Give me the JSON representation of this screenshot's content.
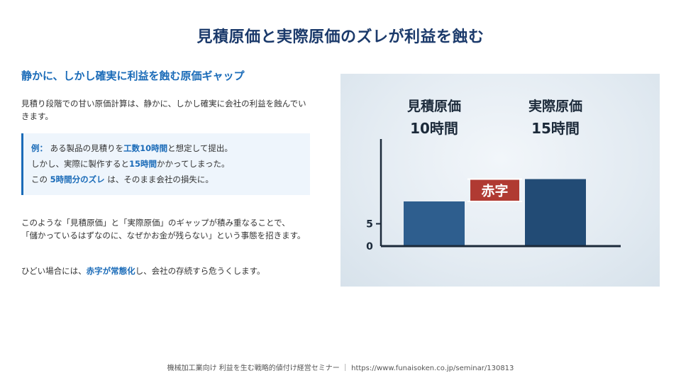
{
  "page": {
    "title": "見積原価と実際原価のズレが利益を蝕む",
    "subtitle": "静かに、しかし確実に利益を蝕む原価ギャップ",
    "intro": "見積り段階での甘い原価計算は、静かに、しかし確実に会社の利益を蝕んでいきます。",
    "example": {
      "line1_label": "例：",
      "line1_a": " ある製品の見積りを",
      "line1_hl": "工数10時間",
      "line1_b": "と想定して提出。",
      "line2_a": "しかし、実際に製作すると",
      "line2_hl": "15時間",
      "line2_b": "かかってしまった。",
      "line3_a": "この ",
      "line3_hl": "5時間分のズレ",
      "line3_b": " は、そのまま会社の損失に。"
    },
    "para2_line1": "このような「見積原価」と「実際原価」のギャップが積み重なることで、",
    "para2_line2": "「儲かっているはずなのに、なぜかお金が残らない」という事態を招きます。",
    "para3_a": "ひどい場合には、",
    "para3_hl": "赤字が常態化",
    "para3_b": "し、会社の存続すら危うくします。",
    "footer": "機械加工業向け 利益を生む戦略的値付け経営セミナー ｜ https://www.funaisoken.co.jp/seminar/130813"
  },
  "chart_data": {
    "type": "bar",
    "categories": [
      "見積原価",
      "実際原価"
    ],
    "value_labels": [
      "10時間",
      "15時間"
    ],
    "values": [
      10,
      15
    ],
    "gap": {
      "label": "赤字",
      "from": 10,
      "to": 15
    },
    "yticks": [
      0,
      5
    ],
    "ylim": [
      0,
      20
    ],
    "colors": {
      "bar": "#2e5e8e",
      "bar_dark": "#224b75",
      "gap": "#b03a32",
      "axis": "#1c2a3a"
    }
  }
}
